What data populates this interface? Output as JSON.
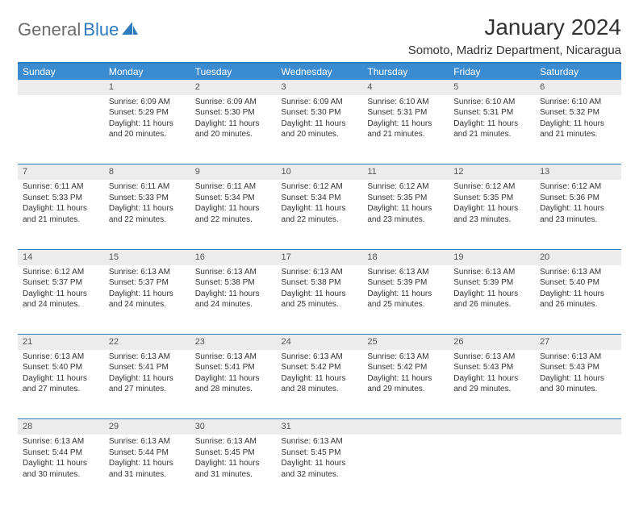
{
  "brand": {
    "word1": "General",
    "word2": "Blue"
  },
  "title": "January 2024",
  "location": "Somoto, Madriz Department, Nicaragua",
  "colors": {
    "header_bg": "#3b8bd0",
    "header_text": "#ffffff",
    "border": "#2e7cc0",
    "daynum_bg": "#ececec",
    "text": "#333333",
    "logo_gray": "#6b6b6b",
    "logo_blue": "#2e7cc0"
  },
  "weekdays": [
    "Sunday",
    "Monday",
    "Tuesday",
    "Wednesday",
    "Thursday",
    "Friday",
    "Saturday"
  ],
  "weeks": [
    {
      "nums": [
        "",
        "1",
        "2",
        "3",
        "4",
        "5",
        "6"
      ],
      "cells": [
        {
          "sunrise": "",
          "sunset": "",
          "daylight": ""
        },
        {
          "sunrise": "Sunrise: 6:09 AM",
          "sunset": "Sunset: 5:29 PM",
          "daylight": "Daylight: 11 hours and 20 minutes."
        },
        {
          "sunrise": "Sunrise: 6:09 AM",
          "sunset": "Sunset: 5:30 PM",
          "daylight": "Daylight: 11 hours and 20 minutes."
        },
        {
          "sunrise": "Sunrise: 6:09 AM",
          "sunset": "Sunset: 5:30 PM",
          "daylight": "Daylight: 11 hours and 20 minutes."
        },
        {
          "sunrise": "Sunrise: 6:10 AM",
          "sunset": "Sunset: 5:31 PM",
          "daylight": "Daylight: 11 hours and 21 minutes."
        },
        {
          "sunrise": "Sunrise: 6:10 AM",
          "sunset": "Sunset: 5:31 PM",
          "daylight": "Daylight: 11 hours and 21 minutes."
        },
        {
          "sunrise": "Sunrise: 6:10 AM",
          "sunset": "Sunset: 5:32 PM",
          "daylight": "Daylight: 11 hours and 21 minutes."
        }
      ]
    },
    {
      "nums": [
        "7",
        "8",
        "9",
        "10",
        "11",
        "12",
        "13"
      ],
      "cells": [
        {
          "sunrise": "Sunrise: 6:11 AM",
          "sunset": "Sunset: 5:33 PM",
          "daylight": "Daylight: 11 hours and 21 minutes."
        },
        {
          "sunrise": "Sunrise: 6:11 AM",
          "sunset": "Sunset: 5:33 PM",
          "daylight": "Daylight: 11 hours and 22 minutes."
        },
        {
          "sunrise": "Sunrise: 6:11 AM",
          "sunset": "Sunset: 5:34 PM",
          "daylight": "Daylight: 11 hours and 22 minutes."
        },
        {
          "sunrise": "Sunrise: 6:12 AM",
          "sunset": "Sunset: 5:34 PM",
          "daylight": "Daylight: 11 hours and 22 minutes."
        },
        {
          "sunrise": "Sunrise: 6:12 AM",
          "sunset": "Sunset: 5:35 PM",
          "daylight": "Daylight: 11 hours and 23 minutes."
        },
        {
          "sunrise": "Sunrise: 6:12 AM",
          "sunset": "Sunset: 5:35 PM",
          "daylight": "Daylight: 11 hours and 23 minutes."
        },
        {
          "sunrise": "Sunrise: 6:12 AM",
          "sunset": "Sunset: 5:36 PM",
          "daylight": "Daylight: 11 hours and 23 minutes."
        }
      ]
    },
    {
      "nums": [
        "14",
        "15",
        "16",
        "17",
        "18",
        "19",
        "20"
      ],
      "cells": [
        {
          "sunrise": "Sunrise: 6:12 AM",
          "sunset": "Sunset: 5:37 PM",
          "daylight": "Daylight: 11 hours and 24 minutes."
        },
        {
          "sunrise": "Sunrise: 6:13 AM",
          "sunset": "Sunset: 5:37 PM",
          "daylight": "Daylight: 11 hours and 24 minutes."
        },
        {
          "sunrise": "Sunrise: 6:13 AM",
          "sunset": "Sunset: 5:38 PM",
          "daylight": "Daylight: 11 hours and 24 minutes."
        },
        {
          "sunrise": "Sunrise: 6:13 AM",
          "sunset": "Sunset: 5:38 PM",
          "daylight": "Daylight: 11 hours and 25 minutes."
        },
        {
          "sunrise": "Sunrise: 6:13 AM",
          "sunset": "Sunset: 5:39 PM",
          "daylight": "Daylight: 11 hours and 25 minutes."
        },
        {
          "sunrise": "Sunrise: 6:13 AM",
          "sunset": "Sunset: 5:39 PM",
          "daylight": "Daylight: 11 hours and 26 minutes."
        },
        {
          "sunrise": "Sunrise: 6:13 AM",
          "sunset": "Sunset: 5:40 PM",
          "daylight": "Daylight: 11 hours and 26 minutes."
        }
      ]
    },
    {
      "nums": [
        "21",
        "22",
        "23",
        "24",
        "25",
        "26",
        "27"
      ],
      "cells": [
        {
          "sunrise": "Sunrise: 6:13 AM",
          "sunset": "Sunset: 5:40 PM",
          "daylight": "Daylight: 11 hours and 27 minutes."
        },
        {
          "sunrise": "Sunrise: 6:13 AM",
          "sunset": "Sunset: 5:41 PM",
          "daylight": "Daylight: 11 hours and 27 minutes."
        },
        {
          "sunrise": "Sunrise: 6:13 AM",
          "sunset": "Sunset: 5:41 PM",
          "daylight": "Daylight: 11 hours and 28 minutes."
        },
        {
          "sunrise": "Sunrise: 6:13 AM",
          "sunset": "Sunset: 5:42 PM",
          "daylight": "Daylight: 11 hours and 28 minutes."
        },
        {
          "sunrise": "Sunrise: 6:13 AM",
          "sunset": "Sunset: 5:42 PM",
          "daylight": "Daylight: 11 hours and 29 minutes."
        },
        {
          "sunrise": "Sunrise: 6:13 AM",
          "sunset": "Sunset: 5:43 PM",
          "daylight": "Daylight: 11 hours and 29 minutes."
        },
        {
          "sunrise": "Sunrise: 6:13 AM",
          "sunset": "Sunset: 5:43 PM",
          "daylight": "Daylight: 11 hours and 30 minutes."
        }
      ]
    },
    {
      "nums": [
        "28",
        "29",
        "30",
        "31",
        "",
        "",
        ""
      ],
      "cells": [
        {
          "sunrise": "Sunrise: 6:13 AM",
          "sunset": "Sunset: 5:44 PM",
          "daylight": "Daylight: 11 hours and 30 minutes."
        },
        {
          "sunrise": "Sunrise: 6:13 AM",
          "sunset": "Sunset: 5:44 PM",
          "daylight": "Daylight: 11 hours and 31 minutes."
        },
        {
          "sunrise": "Sunrise: 6:13 AM",
          "sunset": "Sunset: 5:45 PM",
          "daylight": "Daylight: 11 hours and 31 minutes."
        },
        {
          "sunrise": "Sunrise: 6:13 AM",
          "sunset": "Sunset: 5:45 PM",
          "daylight": "Daylight: 11 hours and 32 minutes."
        },
        {
          "sunrise": "",
          "sunset": "",
          "daylight": ""
        },
        {
          "sunrise": "",
          "sunset": "",
          "daylight": ""
        },
        {
          "sunrise": "",
          "sunset": "",
          "daylight": ""
        }
      ]
    }
  ]
}
